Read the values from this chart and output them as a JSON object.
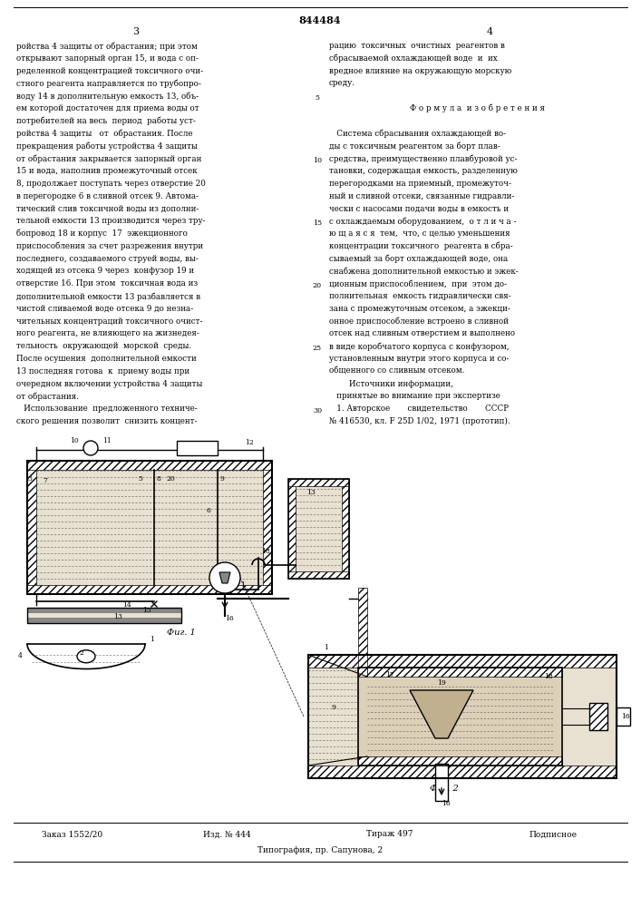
{
  "patent_number": "844484",
  "page_left": "3",
  "page_right": "4",
  "col_left_text": [
    "ройства 4 защиты от обрастания; при этом",
    "открывают запорный орган 15, и вода с оп-",
    "ределенной концентрацией токсичного очи-",
    "стного реагента направляется по трубопро-",
    "воду 14 в дополнительную емкость 13, объ-",
    "ем которой достаточен для приема воды от",
    "потребителей на весь  период  работы уст-",
    "ройства 4 защиты   от  обрастания. После",
    "прекращения работы устройства 4 защиты",
    "от обрастания закрывается запорный орган",
    "15 и вода, наполнив промежуточный отсек",
    "8, продолжает поступать через отверстие 20",
    "в перегородке 6 в сливной отсек 9. Автома-",
    "тический слив токсичной воды из дополни-",
    "тельной емкости 13 производится через тру-",
    "бопровод 18 и корпус  17  эжекционного",
    "приспособления за счет разрежения внутри",
    "последнего, создаваемого струей воды, вы-",
    "ходящей из отсека 9 через  конфузор 19 и",
    "отверстие 16. При этом  токсичная вода из",
    "дополнительной емкости 13 разбавляется в",
    "чистой сливаемой воде отсека 9 до незна-",
    "чительных концентраций токсичного очист-",
    "ного реагента, не влияющего на жизнедея-",
    "тельность  окружающей  морской  среды.",
    "После осушения  дополнительной емкости",
    "13 последняя готова  к  приему воды при",
    "очередном включении устройства 4 защиты",
    "от обрастания.",
    "   Использование  предложенного техниче-",
    "ского решения позволит  снизить концент-"
  ],
  "col_right_text": [
    "рацию  токсичных  очистных  реагентов в",
    "сбрасываемой охлаждающей воде  и  их",
    "вредное влияние на окружающую морскую",
    "среду.",
    "",
    "        Ф о р м у л а  и з о б р е т е н и я",
    "",
    "   Система сбрасывания охлаждающей во-",
    "ды с токсичным реагентом за борт плав-",
    "средства, преимущественно плавбуровой ус-",
    "тановки, содержащая емкость, разделенную",
    "перегородками на приемный, промежуточ-",
    "ный и сливной отсеки, связанные гидравли-",
    "чески с насосами подачи воды в емкость и",
    "с охлаждаемым оборудованием,  о т л и ч а -",
    "ю щ а я с я  тем,  что, с целью уменьшения",
    "концентрации токсичного  реагента в сбра-",
    "сываемый за борт охлаждающей воде, она",
    "снабжена дополнительной емкостью и эжек-",
    "ционным приспособлением,  при  этом до-",
    "полнительная  емкость гидравлически свя-",
    "зана с промежуточным отсеком, а эжекци-",
    "онное приспособление встроено в сливной",
    "отсек над сливным отверстием и выполнено",
    "в виде коробчатого корпуса с конфузором,",
    "установленным внутри этого корпуса и со-",
    "общенного со сливным отсеком.",
    "        Источники информации,",
    "   принятые во внимание при экспертизе",
    "   1. Авторское       свидетельство       СССР",
    "№ 416530, кл. F 25D 1/02, 1971 (прототип)."
  ],
  "footer_left": "Заказ 1552/20",
  "footer_mid_left": "Изд. № 444",
  "footer_mid_right": "Тираж 497",
  "footer_right": "Подписное",
  "footer_bottom": "Типография, пр. Сапунова, 2",
  "bg_color": "#ffffff",
  "text_color": "#000000"
}
